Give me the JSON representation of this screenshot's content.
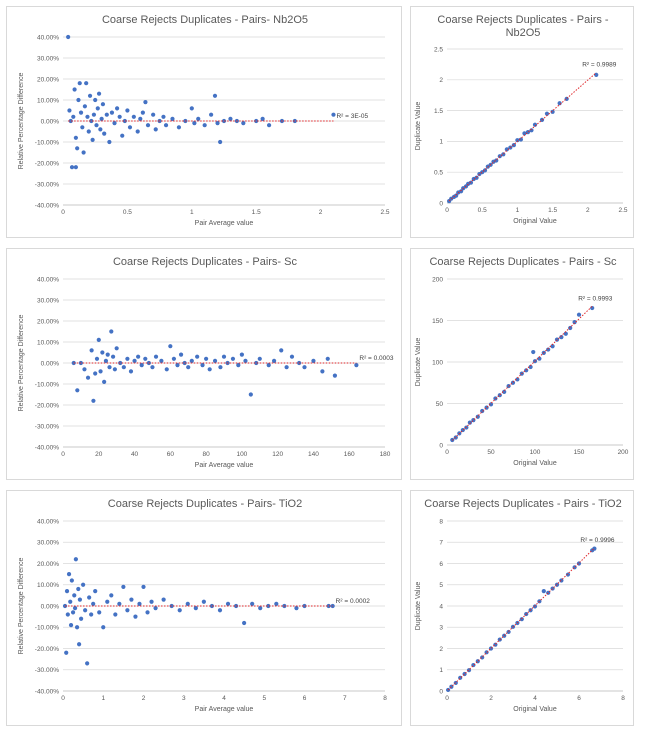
{
  "chart_data": [
    {
      "type": "scatter",
      "title": "Coarse Rejects Duplicates - Pairs- Nb2O5",
      "xlabel": "Pair Average value",
      "ylabel": "Relative Percentage Difference",
      "xlim": [
        0,
        2.5
      ],
      "ylim": [
        -40,
        40
      ],
      "xticks": [
        "0",
        "0.5",
        "1",
        "1.5",
        "2",
        "2.5"
      ],
      "yticks": [
        "40.00%",
        "30.00%",
        "20.00%",
        "10.00%",
        "0.00%",
        "-10.00%",
        "-20.00%",
        "-30.00%",
        "-40.00%"
      ],
      "trendline": "linear, dotted red",
      "r2_label": "R² = 3E-05",
      "grid": "horizontal",
      "marker_color": "#4472c4",
      "points": [
        [
          0.04,
          40
        ],
        [
          0.05,
          5
        ],
        [
          0.06,
          0
        ],
        [
          0.07,
          -22
        ],
        [
          0.08,
          2
        ],
        [
          0.09,
          15
        ],
        [
          0.1,
          -22
        ],
        [
          0.1,
          -8
        ],
        [
          0.11,
          -13
        ],
        [
          0.12,
          10
        ],
        [
          0.13,
          18
        ],
        [
          0.14,
          4
        ],
        [
          0.15,
          -3
        ],
        [
          0.16,
          -15
        ],
        [
          0.17,
          7
        ],
        [
          0.18,
          18
        ],
        [
          0.19,
          2
        ],
        [
          0.2,
          -5
        ],
        [
          0.21,
          12
        ],
        [
          0.22,
          0
        ],
        [
          0.23,
          -9
        ],
        [
          0.24,
          3
        ],
        [
          0.25,
          10
        ],
        [
          0.26,
          -2
        ],
        [
          0.27,
          6
        ],
        [
          0.28,
          13
        ],
        [
          0.29,
          -4
        ],
        [
          0.3,
          1
        ],
        [
          0.31,
          8
        ],
        [
          0.32,
          -6
        ],
        [
          0.34,
          3
        ],
        [
          0.36,
          -10
        ],
        [
          0.38,
          4
        ],
        [
          0.4,
          -1
        ],
        [
          0.42,
          6
        ],
        [
          0.44,
          2
        ],
        [
          0.46,
          -7
        ],
        [
          0.48,
          0
        ],
        [
          0.5,
          5
        ],
        [
          0.52,
          -3
        ],
        [
          0.55,
          2
        ],
        [
          0.58,
          -5
        ],
        [
          0.6,
          1
        ],
        [
          0.62,
          4
        ],
        [
          0.64,
          9
        ],
        [
          0.66,
          -2
        ],
        [
          0.7,
          3
        ],
        [
          0.72,
          -4
        ],
        [
          0.75,
          0
        ],
        [
          0.78,
          2
        ],
        [
          0.8,
          -2
        ],
        [
          0.85,
          1
        ],
        [
          0.9,
          -3
        ],
        [
          0.95,
          0
        ],
        [
          1.0,
          6
        ],
        [
          1.02,
          -1
        ],
        [
          1.05,
          1
        ],
        [
          1.1,
          -2
        ],
        [
          1.15,
          3
        ],
        [
          1.18,
          12
        ],
        [
          1.2,
          -1
        ],
        [
          1.22,
          -10
        ],
        [
          1.25,
          0
        ],
        [
          1.3,
          1
        ],
        [
          1.35,
          0
        ],
        [
          1.4,
          -1
        ],
        [
          1.5,
          0
        ],
        [
          1.55,
          1
        ],
        [
          1.6,
          -2
        ],
        [
          1.7,
          0
        ],
        [
          1.8,
          0
        ],
        [
          2.1,
          3
        ]
      ]
    },
    {
      "type": "scatter",
      "title": "Coarse Rejects Duplicates - Pairs - Nb2O5",
      "xlabel": "Original Value",
      "ylabel": "Duplicate Value",
      "xlim": [
        0,
        2.5
      ],
      "ylim": [
        0,
        2.5
      ],
      "xticks": [
        "0",
        "0.5",
        "1",
        "1.5",
        "2",
        "2.5"
      ],
      "yticks": [
        "2.5",
        "2",
        "1.5",
        "1",
        "0.5",
        "0"
      ],
      "trendline": "linear, dotted red",
      "r2_label": "R² = 0.9989",
      "grid": "horizontal",
      "marker_color": "#4472c4",
      "points": [
        [
          0.03,
          0.03
        ],
        [
          0.06,
          0.07
        ],
        [
          0.1,
          0.1
        ],
        [
          0.13,
          0.12
        ],
        [
          0.16,
          0.17
        ],
        [
          0.2,
          0.19
        ],
        [
          0.23,
          0.24
        ],
        [
          0.27,
          0.27
        ],
        [
          0.3,
          0.31
        ],
        [
          0.34,
          0.33
        ],
        [
          0.38,
          0.39
        ],
        [
          0.42,
          0.41
        ],
        [
          0.46,
          0.47
        ],
        [
          0.5,
          0.5
        ],
        [
          0.54,
          0.53
        ],
        [
          0.58,
          0.59
        ],
        [
          0.62,
          0.62
        ],
        [
          0.66,
          0.67
        ],
        [
          0.7,
          0.69
        ],
        [
          0.75,
          0.76
        ],
        [
          0.8,
          0.79
        ],
        [
          0.85,
          0.87
        ],
        [
          0.9,
          0.9
        ],
        [
          0.95,
          0.94
        ],
        [
          1.0,
          1.02
        ],
        [
          1.05,
          1.03
        ],
        [
          1.1,
          1.13
        ],
        [
          1.15,
          1.15
        ],
        [
          1.2,
          1.18
        ],
        [
          1.25,
          1.27
        ],
        [
          1.35,
          1.35
        ],
        [
          1.42,
          1.45
        ],
        [
          1.5,
          1.48
        ],
        [
          1.6,
          1.62
        ],
        [
          1.7,
          1.69
        ],
        [
          2.12,
          2.08
        ]
      ]
    },
    {
      "type": "scatter",
      "title": "Coarse Rejects Duplicates - Pairs- Sc",
      "xlabel": "Pair Average value",
      "ylabel": "Relative Percentage Difference",
      "xlim": [
        0,
        180
      ],
      "ylim": [
        -40,
        40
      ],
      "xticks": [
        "0",
        "20",
        "40",
        "60",
        "80",
        "100",
        "120",
        "140",
        "160",
        "180"
      ],
      "yticks": [
        "40.00%",
        "30.00%",
        "20.00%",
        "10.00%",
        "0.00%",
        "-10.00%",
        "-20.00%",
        "-30.00%",
        "-40.00%"
      ],
      "trendline": "linear, dotted red",
      "r2_label": "R² = 0.0003",
      "grid": "horizontal",
      "marker_color": "#4472c4",
      "points": [
        [
          6,
          0
        ],
        [
          8,
          -13
        ],
        [
          10,
          0
        ],
        [
          12,
          -3
        ],
        [
          14,
          -7
        ],
        [
          16,
          6
        ],
        [
          17,
          -18
        ],
        [
          18,
          -5
        ],
        [
          19,
          2
        ],
        [
          20,
          11
        ],
        [
          21,
          -4
        ],
        [
          22,
          5
        ],
        [
          23,
          -9
        ],
        [
          24,
          1
        ],
        [
          25,
          4
        ],
        [
          26,
          -2
        ],
        [
          27,
          15
        ],
        [
          28,
          3
        ],
        [
          29,
          -3
        ],
        [
          30,
          7
        ],
        [
          32,
          0
        ],
        [
          34,
          -2
        ],
        [
          36,
          2
        ],
        [
          38,
          -4
        ],
        [
          40,
          1
        ],
        [
          42,
          3
        ],
        [
          44,
          -1
        ],
        [
          46,
          2
        ],
        [
          48,
          0
        ],
        [
          50,
          -2
        ],
        [
          52,
          3
        ],
        [
          55,
          1
        ],
        [
          58,
          -3
        ],
        [
          60,
          8
        ],
        [
          62,
          2
        ],
        [
          64,
          -1
        ],
        [
          66,
          4
        ],
        [
          68,
          0
        ],
        [
          70,
          -2
        ],
        [
          72,
          1
        ],
        [
          75,
          3
        ],
        [
          78,
          -1
        ],
        [
          80,
          2
        ],
        [
          82,
          -3
        ],
        [
          85,
          1
        ],
        [
          88,
          -2
        ],
        [
          90,
          3
        ],
        [
          92,
          0
        ],
        [
          95,
          2
        ],
        [
          98,
          -1
        ],
        [
          100,
          4
        ],
        [
          102,
          1
        ],
        [
          105,
          -15
        ],
        [
          108,
          0
        ],
        [
          110,
          2
        ],
        [
          115,
          -1
        ],
        [
          118,
          1
        ],
        [
          122,
          6
        ],
        [
          125,
          -2
        ],
        [
          128,
          3
        ],
        [
          132,
          0
        ],
        [
          135,
          -2
        ],
        [
          140,
          1
        ],
        [
          145,
          -4
        ],
        [
          148,
          2
        ],
        [
          152,
          -6
        ],
        [
          164,
          -1
        ]
      ]
    },
    {
      "type": "scatter",
      "title": "Coarse Rejects Duplicates - Pairs - Sc",
      "xlabel": "Original Value",
      "ylabel": "Duplicate Value",
      "xlim": [
        0,
        200
      ],
      "ylim": [
        0,
        200
      ],
      "xticks": [
        "0",
        "50",
        "100",
        "150",
        "200"
      ],
      "yticks": [
        "200",
        "150",
        "100",
        "50",
        "0"
      ],
      "trendline": "linear, dotted red",
      "r2_label": "R² = 0.9993",
      "grid": "horizontal",
      "marker_color": "#4472c4",
      "points": [
        [
          6,
          6
        ],
        [
          10,
          9
        ],
        [
          14,
          14
        ],
        [
          18,
          18
        ],
        [
          22,
          21
        ],
        [
          26,
          27
        ],
        [
          30,
          30
        ],
        [
          35,
          34
        ],
        [
          40,
          41
        ],
        [
          45,
          45
        ],
        [
          50,
          49
        ],
        [
          55,
          56
        ],
        [
          60,
          60
        ],
        [
          65,
          64
        ],
        [
          70,
          71
        ],
        [
          75,
          75
        ],
        [
          80,
          79
        ],
        [
          85,
          86
        ],
        [
          90,
          90
        ],
        [
          95,
          94
        ],
        [
          98,
          112
        ],
        [
          100,
          101
        ],
        [
          105,
          104
        ],
        [
          110,
          111
        ],
        [
          115,
          115
        ],
        [
          120,
          119
        ],
        [
          125,
          127
        ],
        [
          130,
          130
        ],
        [
          135,
          134
        ],
        [
          140,
          141
        ],
        [
          145,
          148
        ],
        [
          150,
          157
        ],
        [
          165,
          165
        ]
      ]
    },
    {
      "type": "scatter",
      "title": "Coarse Rejects Duplicates - Pairs- TiO2",
      "xlabel": "Pair Average value",
      "ylabel": "Relative Percentage Difference",
      "xlim": [
        0,
        8
      ],
      "ylim": [
        -40,
        40
      ],
      "xticks": [
        "0",
        "1",
        "2",
        "3",
        "4",
        "5",
        "6",
        "7",
        "8"
      ],
      "yticks": [
        "40.00%",
        "30.00%",
        "20.00%",
        "10.00%",
        "0.00%",
        "-10.00%",
        "-20.00%",
        "-30.00%",
        "-40.00%"
      ],
      "trendline": "linear, dotted red",
      "r2_label": "R² = 0.0002",
      "grid": "horizontal",
      "marker_color": "#4472c4",
      "points": [
        [
          0.05,
          0
        ],
        [
          0.08,
          -22
        ],
        [
          0.1,
          7
        ],
        [
          0.12,
          -4
        ],
        [
          0.15,
          15
        ],
        [
          0.18,
          2
        ],
        [
          0.2,
          -9
        ],
        [
          0.22,
          12
        ],
        [
          0.25,
          -3
        ],
        [
          0.28,
          5
        ],
        [
          0.3,
          -1
        ],
        [
          0.32,
          22
        ],
        [
          0.35,
          -10
        ],
        [
          0.38,
          8
        ],
        [
          0.4,
          -18
        ],
        [
          0.42,
          3
        ],
        [
          0.45,
          -6
        ],
        [
          0.5,
          10
        ],
        [
          0.55,
          -2
        ],
        [
          0.6,
          -27
        ],
        [
          0.65,
          4
        ],
        [
          0.7,
          -4
        ],
        [
          0.75,
          1
        ],
        [
          0.8,
          7
        ],
        [
          0.9,
          -3
        ],
        [
          1.0,
          -10
        ],
        [
          1.1,
          2
        ],
        [
          1.2,
          5
        ],
        [
          1.3,
          -4
        ],
        [
          1.4,
          1
        ],
        [
          1.5,
          9
        ],
        [
          1.6,
          -2
        ],
        [
          1.7,
          3
        ],
        [
          1.8,
          -5
        ],
        [
          1.9,
          1
        ],
        [
          2.0,
          9
        ],
        [
          2.1,
          -3
        ],
        [
          2.2,
          2
        ],
        [
          2.3,
          -1
        ],
        [
          2.5,
          3
        ],
        [
          2.7,
          0
        ],
        [
          2.9,
          -2
        ],
        [
          3.1,
          1
        ],
        [
          3.3,
          -1
        ],
        [
          3.5,
          2
        ],
        [
          3.7,
          0
        ],
        [
          3.9,
          -2
        ],
        [
          4.1,
          1
        ],
        [
          4.3,
          0
        ],
        [
          4.5,
          -8
        ],
        [
          4.7,
          1
        ],
        [
          4.9,
          -1
        ],
        [
          5.1,
          0
        ],
        [
          5.3,
          1
        ],
        [
          5.5,
          0
        ],
        [
          5.8,
          -1
        ],
        [
          6.0,
          0
        ],
        [
          6.6,
          0
        ],
        [
          6.7,
          0
        ]
      ]
    },
    {
      "type": "scatter",
      "title": "Coarse Rejects Duplicates - Pairs - TiO2",
      "xlabel": "Original Value",
      "ylabel": "Duplicate Value",
      "xlim": [
        0,
        8
      ],
      "ylim": [
        0,
        8
      ],
      "xticks": [
        "0",
        "2",
        "4",
        "6",
        "8"
      ],
      "yticks": [
        "8",
        "7",
        "6",
        "5",
        "4",
        "3",
        "2",
        "1",
        "0"
      ],
      "trendline": "linear, dotted red",
      "r2_label": "R² = 0.9996",
      "grid": "horizontal",
      "marker_color": "#4472c4",
      "points": [
        [
          0.05,
          0.05
        ],
        [
          0.2,
          0.2
        ],
        [
          0.4,
          0.38
        ],
        [
          0.6,
          0.62
        ],
        [
          0.8,
          0.8
        ],
        [
          1.0,
          0.98
        ],
        [
          1.2,
          1.22
        ],
        [
          1.4,
          1.4
        ],
        [
          1.6,
          1.58
        ],
        [
          1.8,
          1.82
        ],
        [
          2.0,
          2.0
        ],
        [
          2.2,
          2.18
        ],
        [
          2.4,
          2.42
        ],
        [
          2.6,
          2.6
        ],
        [
          2.8,
          2.78
        ],
        [
          3.0,
          3.02
        ],
        [
          3.2,
          3.2
        ],
        [
          3.4,
          3.38
        ],
        [
          3.6,
          3.62
        ],
        [
          3.8,
          3.8
        ],
        [
          4.0,
          3.98
        ],
        [
          4.2,
          4.22
        ],
        [
          4.4,
          4.7
        ],
        [
          4.6,
          4.62
        ],
        [
          4.8,
          4.82
        ],
        [
          5.0,
          5.0
        ],
        [
          5.2,
          5.2
        ],
        [
          5.5,
          5.48
        ],
        [
          5.8,
          5.82
        ],
        [
          6.0,
          6.0
        ],
        [
          6.6,
          6.62
        ],
        [
          6.7,
          6.7
        ]
      ]
    }
  ]
}
